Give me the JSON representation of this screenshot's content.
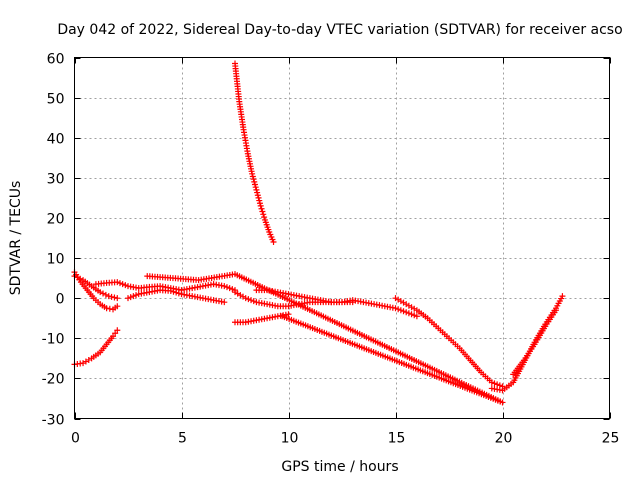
{
  "chart_data": {
    "type": "scatter",
    "title": "Day 042 of 2022, Sidereal Day-to-day VTEC variation (SDTVAR) for receiver acso",
    "xlabel": "GPS time / hours",
    "ylabel": "SDTVAR / TECUs",
    "xlim": [
      0,
      25
    ],
    "ylim": [
      -30,
      60
    ],
    "xticks": [
      0,
      5,
      10,
      15,
      20,
      25
    ],
    "yticks": [
      -30,
      -20,
      -10,
      0,
      10,
      20,
      30,
      40,
      50,
      60
    ],
    "grid": true,
    "marker": "plus",
    "color": "#ff0000",
    "series": [
      {
        "name": "arc-1",
        "x": [
          0.0,
          0.3,
          0.6,
          0.9,
          1.2,
          1.5,
          1.8,
          2.0
        ],
        "y": [
          6.5,
          4.0,
          2.0,
          0.0,
          -1.5,
          -2.5,
          -2.8,
          -2.0
        ]
      },
      {
        "name": "arc-2",
        "x": [
          0.0,
          0.4,
          0.8,
          1.2,
          1.6,
          2.0
        ],
        "y": [
          5.5,
          4.5,
          3.0,
          1.5,
          0.5,
          0.0
        ]
      },
      {
        "name": "arc-3",
        "x": [
          0.0,
          0.4,
          0.8,
          1.2,
          1.5,
          1.8,
          2.0
        ],
        "y": [
          -16.5,
          -16.2,
          -15.0,
          -13.5,
          -11.5,
          -9.5,
          -8.0
        ]
      },
      {
        "name": "arc-4",
        "x": [
          7.5,
          7.7,
          7.9,
          8.1,
          8.3,
          8.5,
          8.7,
          8.9,
          9.1,
          9.3
        ],
        "y": [
          58.5,
          49.0,
          42.0,
          36.0,
          31.0,
          27.0,
          23.0,
          19.5,
          16.5,
          14.0
        ]
      },
      {
        "name": "arc-5",
        "x": [
          1.0,
          1.5,
          2.0,
          2.5,
          3.0,
          3.5,
          4.0,
          4.5,
          5.0,
          5.5,
          6.0,
          6.5,
          7.0,
          7.5
        ],
        "y": [
          3.5,
          3.8,
          4.0,
          3.0,
          2.5,
          2.8,
          3.0,
          2.5,
          2.0,
          2.5,
          3.0,
          3.5,
          3.0,
          2.0
        ]
      },
      {
        "name": "arc-6",
        "x": [
          2.5,
          3.0,
          3.5,
          4.0,
          4.5,
          5.0,
          5.5,
          6.0,
          6.5,
          7.0
        ],
        "y": [
          0.0,
          1.0,
          1.5,
          2.0,
          1.8,
          1.0,
          0.5,
          0.0,
          -0.5,
          -1.0
        ]
      },
      {
        "name": "arc-7",
        "x": [
          7.5,
          8.0,
          8.5,
          9.0,
          9.5,
          10.0,
          10.5,
          11.0,
          11.5,
          12.0,
          12.5,
          13.0
        ],
        "y": [
          1.5,
          0.0,
          -1.0,
          -1.5,
          -2.0,
          -2.0,
          -1.5,
          -1.0,
          -1.0,
          -1.0,
          -1.0,
          -1.0
        ]
      },
      {
        "name": "arc-8",
        "x": [
          7.5,
          8.0,
          8.5,
          9.0,
          9.5,
          10.0
        ],
        "y": [
          -6.0,
          -6.0,
          -5.5,
          -5.0,
          -4.5,
          -4.0
        ]
      },
      {
        "name": "arc-9",
        "x": [
          8.5,
          9.0,
          9.5,
          10.0,
          10.5,
          11.0,
          11.5,
          12.0
        ],
        "y": [
          2.0,
          2.0,
          1.5,
          1.0,
          0.5,
          0.0,
          -0.5,
          -1.0
        ]
      },
      {
        "name": "arc-10",
        "x": [
          12.0,
          12.5,
          13.0,
          13.5,
          14.0,
          14.5,
          15.0,
          15.5,
          16.0
        ],
        "y": [
          -1.0,
          -1.0,
          -0.5,
          -1.0,
          -1.5,
          -2.0,
          -2.5,
          -3.5,
          -4.5
        ]
      },
      {
        "name": "arc-11",
        "x": [
          15.0,
          15.5,
          16.0,
          16.5,
          17.0,
          17.5,
          18.0,
          18.5,
          19.0,
          19.5,
          20.0
        ],
        "y": [
          0.0,
          -1.5,
          -3.0,
          -5.0,
          -7.5,
          -10.0,
          -12.5,
          -15.5,
          -18.5,
          -21.0,
          -22.0
        ]
      },
      {
        "name": "arc-12",
        "x": [
          19.5,
          20.0,
          20.5,
          21.0,
          21.5,
          22.0,
          22.5,
          22.8
        ],
        "y": [
          -22.5,
          -23.0,
          -21.0,
          -16.0,
          -11.0,
          -6.5,
          -2.5,
          0.5
        ]
      },
      {
        "name": "arc-13",
        "x": [
          20.5,
          21.0,
          21.5,
          22.0,
          22.5
        ],
        "y": [
          -19.0,
          -15.5,
          -11.5,
          -7.0,
          -3.0
        ]
      },
      {
        "name": "outliers",
        "x": [
          3.4,
          5.8,
          7.5,
          20.0,
          9.7
        ],
        "y": [
          5.5,
          4.5,
          6.0,
          -26.0,
          -4.5
        ]
      }
    ]
  }
}
